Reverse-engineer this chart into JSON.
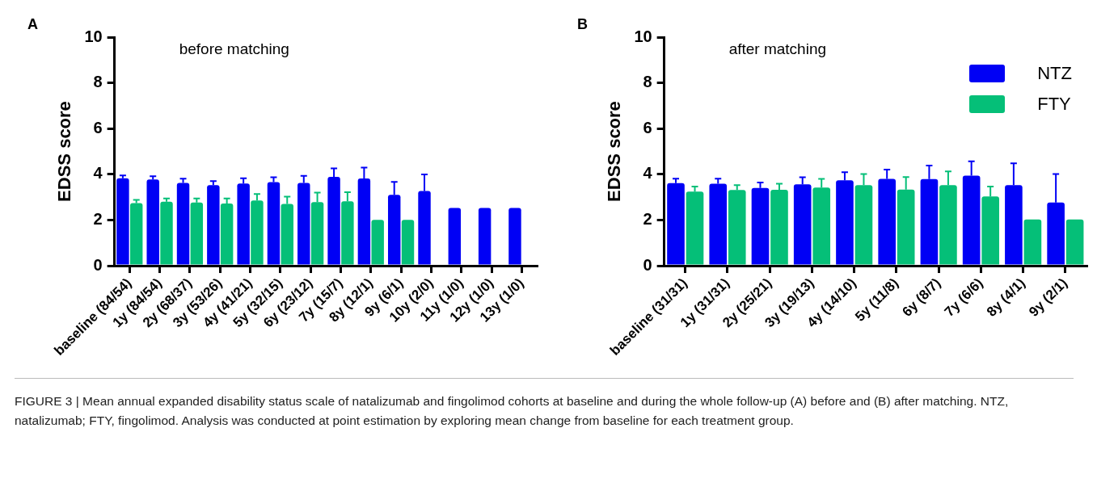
{
  "chart_data": [
    {
      "type": "bar",
      "title": "before matching",
      "ylabel": "EDSS score",
      "annotations": [
        "A"
      ],
      "categories": [
        "baseline (84/54)",
        "1y (84/54)",
        "2y (68/37)",
        "3y (53/26)",
        "4y (41/21)",
        "5y (32/15)",
        "6y (23/12)",
        "7y (15/7)",
        "8y (12/1)",
        "9y (6/1)",
        "10y (2/0)",
        "11y (1/0)",
        "12y (1/0)",
        "13y (1/0)"
      ],
      "series": [
        {
          "color": "#0000f5",
          "values": [
            3.83,
            3.77,
            3.62,
            3.53,
            3.6,
            3.66,
            3.62,
            3.89,
            3.82,
            3.1,
            3.27,
            2.53,
            2.53,
            2.53
          ],
          "errors": [
            0.12,
            0.14,
            0.19,
            0.17,
            0.23,
            0.21,
            0.31,
            0.37,
            0.47,
            0.57,
            0.72,
            null,
            null,
            null
          ]
        },
        {
          "color": "#05bf78",
          "values": [
            2.74,
            2.8,
            2.77,
            2.72,
            2.85,
            2.7,
            2.78,
            2.82,
            2.01,
            2.01,
            null,
            null,
            null,
            null
          ],
          "errors": [
            0.14,
            0.14,
            0.17,
            0.22,
            0.29,
            0.32,
            0.42,
            0.4,
            null,
            null,
            null,
            null,
            null,
            null
          ]
        }
      ],
      "ylim": [
        0,
        10
      ],
      "yticks": [
        0,
        2,
        4,
        6,
        8,
        10
      ]
    },
    {
      "type": "bar",
      "title": "after matching",
      "ylabel": "EDSS score",
      "legend": "top right",
      "annotations": [
        "B",
        "FIGURE 3 | Mean annual expanded disability status scale of natalizumab and fingolimod cohorts at baseline and during the whole follow-up (A) before and (B) after matching. NTZ, natalizumab; FTY, fingolimod. Analysis was conducted at point estimation by exploring mean change from baseline for each treatment group."
      ],
      "categories": [
        "baseline (31/31)",
        "1y (31/31)",
        "2y (25/21)",
        "3y (19/13)",
        "4y (14/10)",
        "5y (11/8)",
        "6y (8/7)",
        "7y (6/6)",
        "8y (4/1)",
        "9y (2/1)"
      ],
      "series": [
        {
          "name": "NTZ",
          "color": "#0000f5",
          "values": [
            3.61,
            3.59,
            3.4,
            3.56,
            3.74,
            3.8,
            3.79,
            3.94,
            3.53,
            2.77
          ],
          "errors": [
            0.2,
            0.22,
            0.24,
            0.31,
            0.35,
            0.41,
            0.59,
            0.63,
            0.95,
            1.24
          ]
        },
        {
          "name": "FTY",
          "color": "#05bf78",
          "values": [
            3.24,
            3.31,
            3.32,
            3.42,
            3.53,
            3.33,
            3.53,
            3.03,
            2.02,
            2.02
          ],
          "errors": [
            0.22,
            0.22,
            0.27,
            0.38,
            0.48,
            0.55,
            0.6,
            0.43,
            null,
            null
          ]
        }
      ],
      "ylim": [
        0,
        10
      ],
      "yticks": [
        0,
        2,
        4,
        6,
        8,
        10
      ]
    }
  ]
}
